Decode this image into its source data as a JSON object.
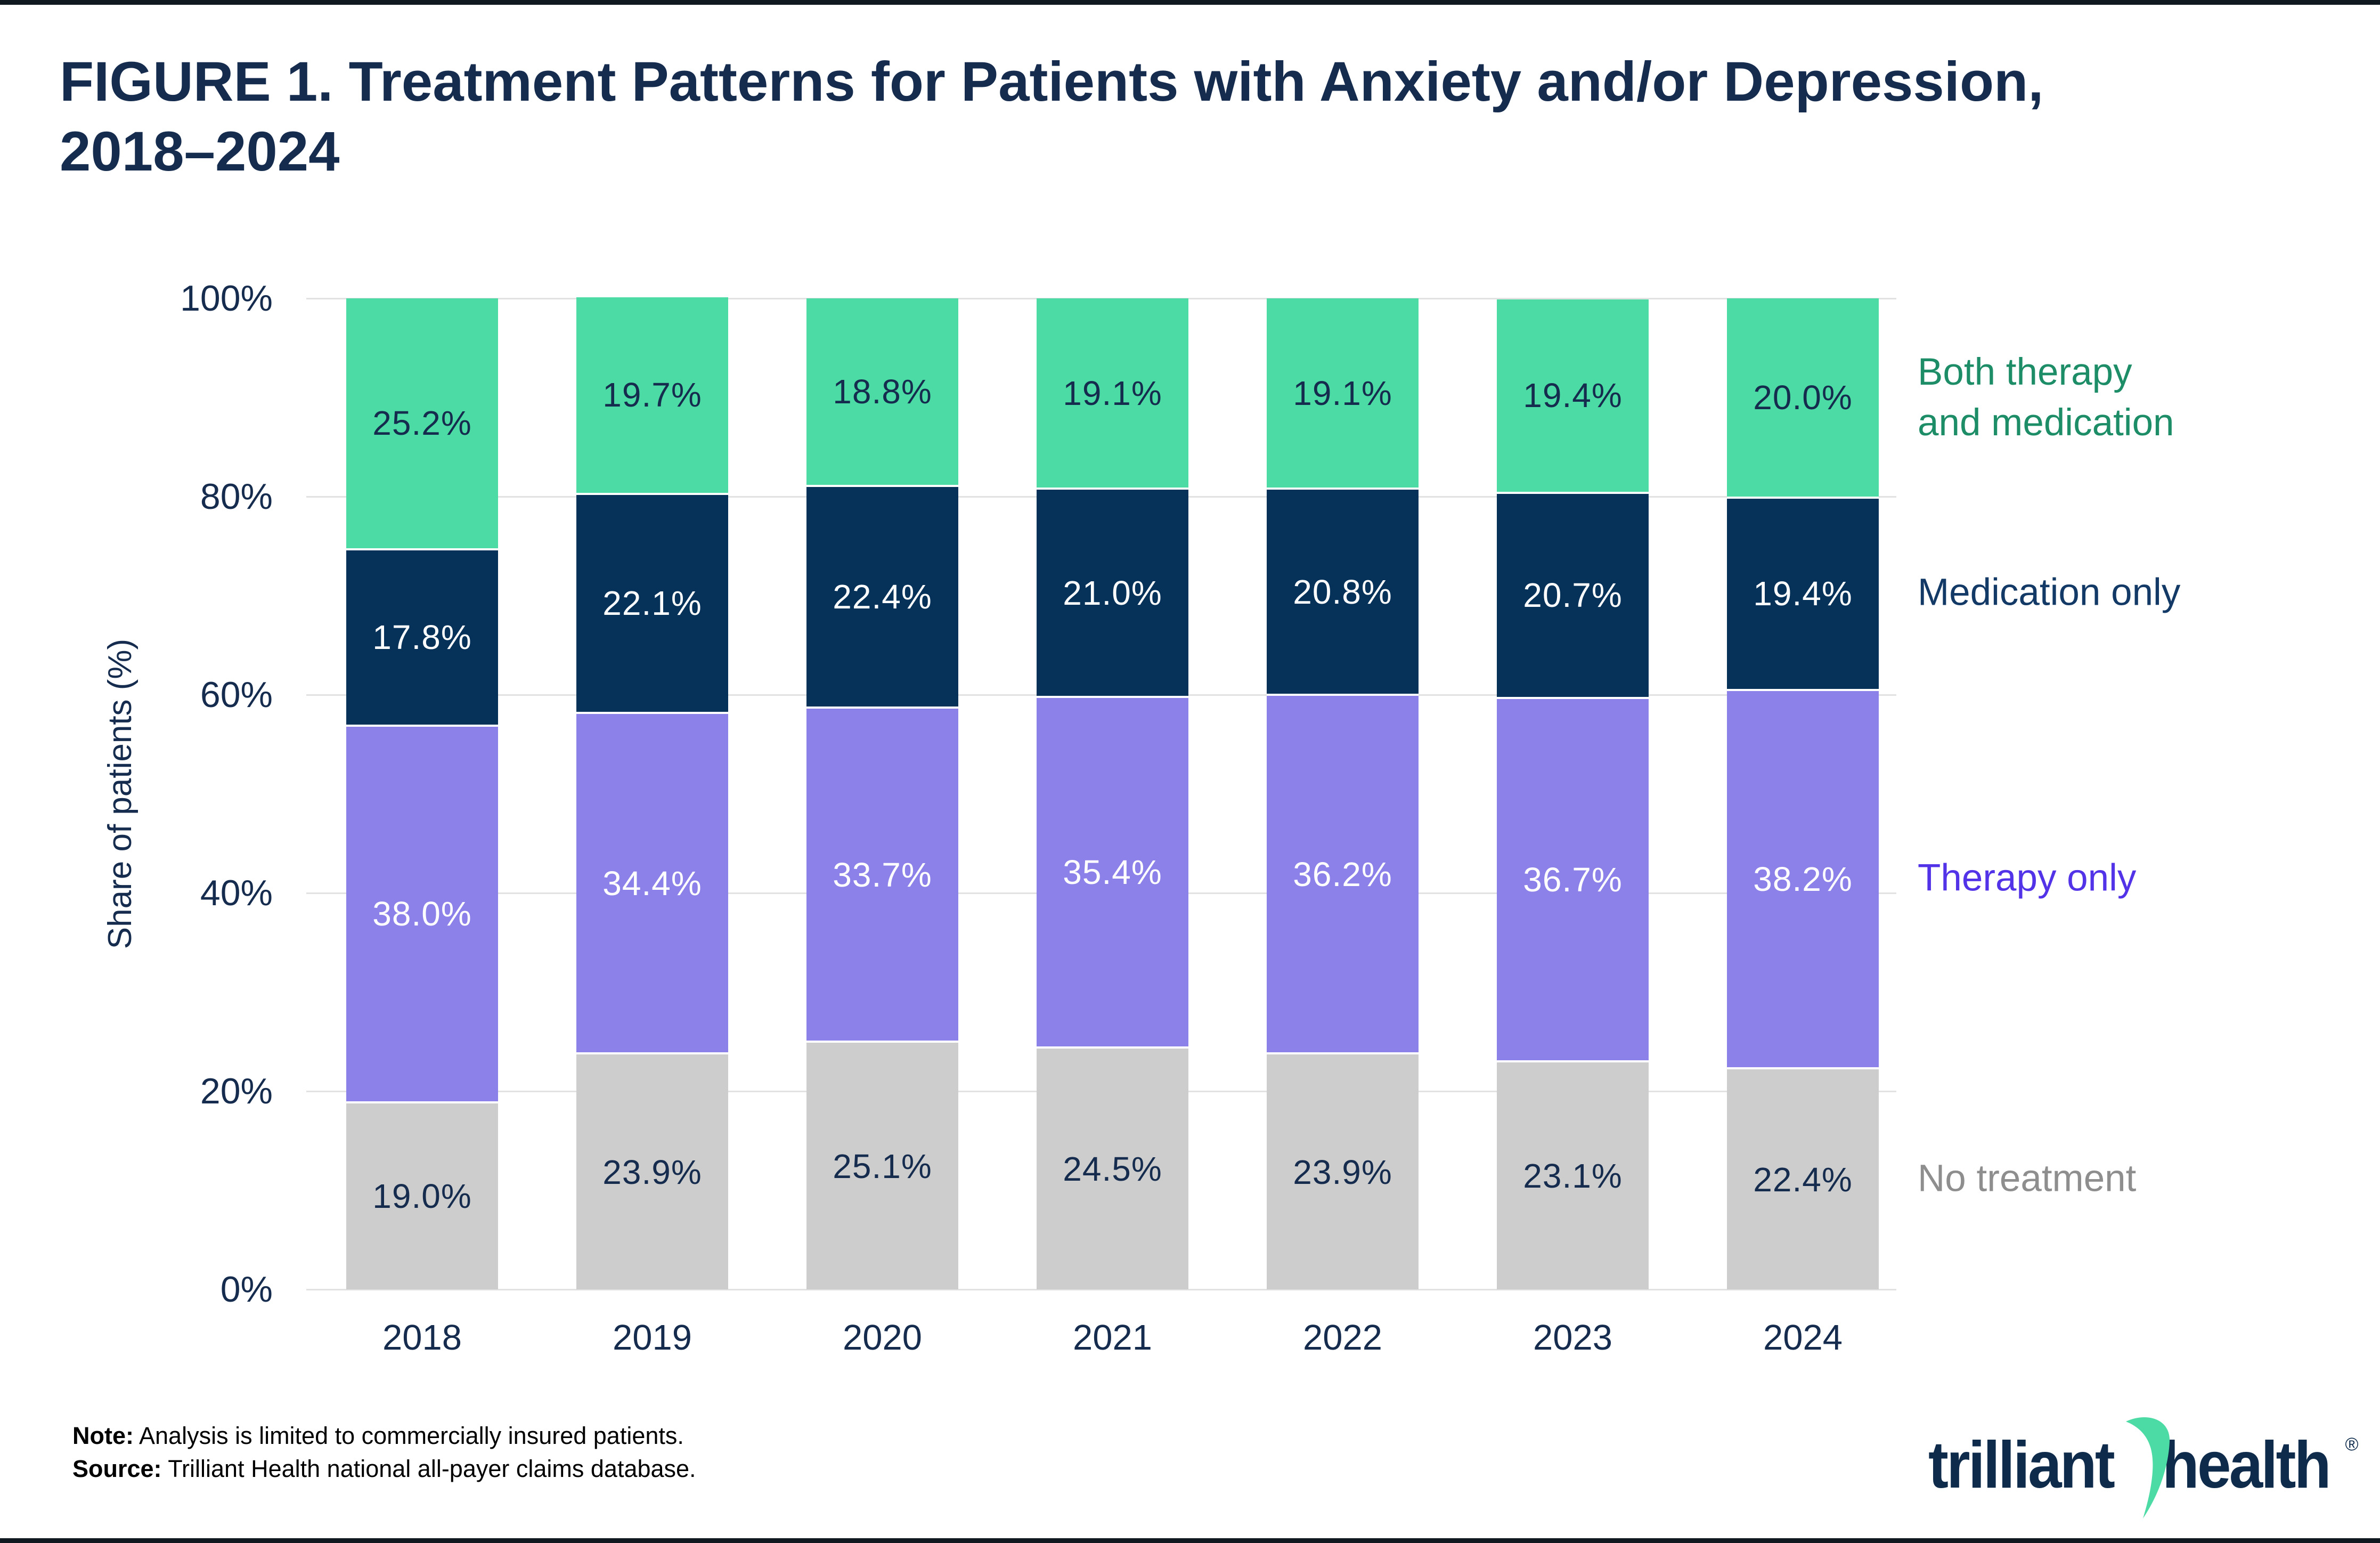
{
  "title": {
    "line1": "FIGURE 1. Treatment Patterns for Patients with Anxiety and/or Depression,",
    "line2": "2018–2024"
  },
  "chart_data": {
    "type": "bar",
    "stacked": true,
    "title": "FIGURE 1. Treatment Patterns for Patients with Anxiety and/or Depression, 2018–2024",
    "xlabel": "",
    "ylabel": "Share of patients (%)",
    "ylim": [
      0,
      100
    ],
    "yticks": [
      {
        "label": "0%",
        "value": 0
      },
      {
        "label": "20%",
        "value": 20
      },
      {
        "label": "40%",
        "value": 40
      },
      {
        "label": "60%",
        "value": 60
      },
      {
        "label": "80%",
        "value": 80
      },
      {
        "label": "100%",
        "value": 100
      }
    ],
    "grid": true,
    "legend_position": "right",
    "categories": [
      "2018",
      "2019",
      "2020",
      "2021",
      "2022",
      "2023",
      "2024"
    ],
    "series": [
      {
        "name": "No treatment",
        "legend_lines": [
          "No treatment"
        ],
        "color": "#CDCDCD",
        "label_color": "#152C4E",
        "legend_text_color": "#8E8E8E",
        "values": [
          19.0,
          23.9,
          25.1,
          24.5,
          23.9,
          23.1,
          22.4
        ]
      },
      {
        "name": "Therapy only",
        "legend_lines": [
          "Therapy only"
        ],
        "color": "#8C80E9",
        "label_color": "#FFFFFF",
        "legend_text_color": "#5333E8",
        "values": [
          38.0,
          34.4,
          33.7,
          35.4,
          36.2,
          36.7,
          38.2
        ]
      },
      {
        "name": "Medication only",
        "legend_lines": [
          "Medication only"
        ],
        "color": "#063259",
        "label_color": "#FFFFFF",
        "legend_text_color": "#133A66",
        "values": [
          17.8,
          22.1,
          22.4,
          21.0,
          20.8,
          20.7,
          19.4
        ]
      },
      {
        "name": "Both therapy and medication",
        "legend_lines": [
          "Both therapy",
          "and medication"
        ],
        "color": "#4CDBA4",
        "label_color": "#152C4E",
        "legend_text_color": "#1D8D68",
        "values": [
          25.2,
          19.7,
          18.8,
          19.1,
          19.1,
          19.4,
          20.0
        ]
      }
    ]
  },
  "footer": {
    "note_label": "Note:",
    "note_text": " Analysis is limited to commercially insured patients.",
    "source_label": "Source:",
    "source_text": " Trilliant Health national all-payer claims database."
  },
  "logo": {
    "word1": "trilliant",
    "word2": "health",
    "registered": "®",
    "swoosh_color": "#4CDBA4",
    "text_color": "#0E2B4C"
  },
  "colors": {
    "background": "#FFFFFF",
    "edge_strip": "#101820",
    "gridline": "#E2E2E2",
    "axis_text": "#152C4E",
    "segment_gap": "#FFFFFF",
    "note_text": "#000000"
  }
}
